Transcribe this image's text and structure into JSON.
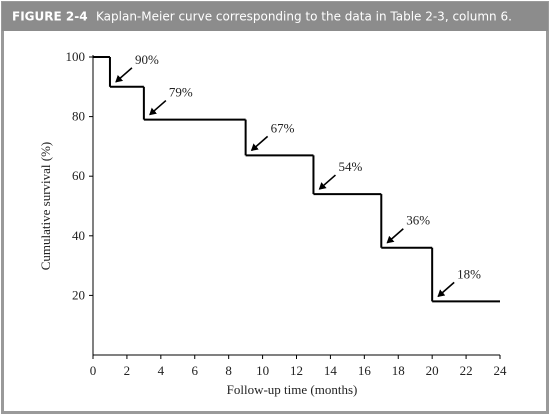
{
  "figure_label": "FIGURE 2-4",
  "chart_data": {
    "type": "step",
    "title": "Kaplan-Meier curve corresponding to the data in Table 2-3, column 6.",
    "x_label": "Follow-up time (months)",
    "y_label": "Cumulative survival (%)",
    "x": [
      0,
      1,
      3,
      9,
      13,
      17,
      20
    ],
    "values": [
      100,
      90,
      79,
      67,
      54,
      36,
      18
    ],
    "value_labels": [
      null,
      "90%",
      "79%",
      "67%",
      "54%",
      "36%",
      "18%"
    ],
    "color": "#000000",
    "xlim": [
      0,
      24
    ],
    "xticks": [
      0,
      2,
      4,
      6,
      8,
      10,
      12,
      14,
      16,
      18,
      20,
      22,
      24
    ],
    "ylim": [
      0,
      100
    ],
    "yticks": [
      20,
      40,
      60,
      80,
      100
    ],
    "grid": false
  }
}
